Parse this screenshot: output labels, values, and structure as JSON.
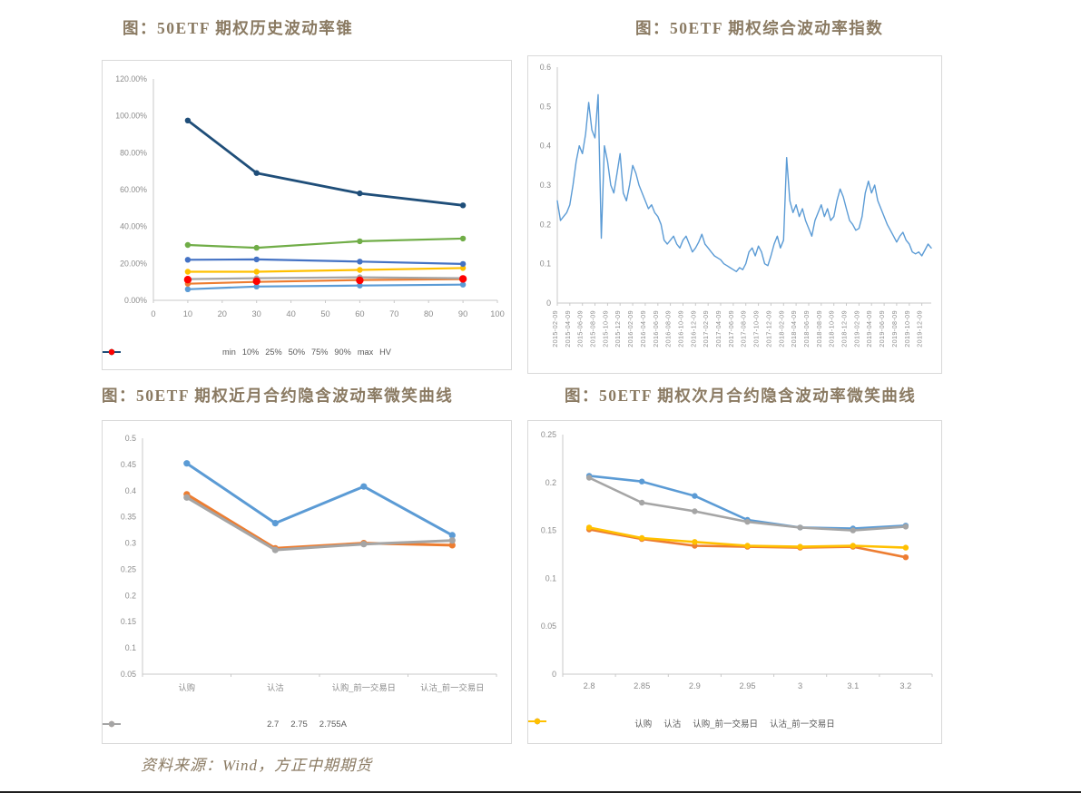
{
  "page": {
    "source_note": "资料来源：Wind，方正中期期货"
  },
  "chart_data": [
    {
      "id": "history-volatility-cone",
      "title": "图：50ETF 期权历史波动率锥",
      "type": "line",
      "x": [
        10,
        30,
        60,
        90
      ],
      "xlim": [
        0,
        100
      ],
      "x_ticks": [
        {
          "pos": 0,
          "label": "0"
        },
        {
          "pos": 10,
          "label": "10"
        },
        {
          "pos": 20,
          "label": "20"
        },
        {
          "pos": 30,
          "label": "30"
        },
        {
          "pos": 40,
          "label": "40"
        },
        {
          "pos": 50,
          "label": "50"
        },
        {
          "pos": 60,
          "label": "60"
        },
        {
          "pos": 70,
          "label": "70"
        },
        {
          "pos": 80,
          "label": "80"
        },
        {
          "pos": 90,
          "label": "90"
        },
        {
          "pos": 100,
          "label": "100"
        }
      ],
      "ylim": [
        0,
        1.2
      ],
      "y_ticks": [
        {
          "v": 0,
          "label": "0.00%"
        },
        {
          "v": 0.2,
          "label": "20.00%"
        },
        {
          "v": 0.4,
          "label": "40.00%"
        },
        {
          "v": 0.6,
          "label": "60.00%"
        },
        {
          "v": 0.8,
          "label": "80.00%"
        },
        {
          "v": 1.0,
          "label": "100.00%"
        },
        {
          "v": 1.2,
          "label": "120.00%"
        }
      ],
      "legend_position": "bottom",
      "series": [
        {
          "name": "min",
          "color": "#5B9BD5",
          "values": [
            0.06,
            0.075,
            0.08,
            0.085
          ]
        },
        {
          "name": "10%",
          "color": "#ED7D31",
          "values": [
            0.09,
            0.1,
            0.11,
            0.115
          ]
        },
        {
          "name": "25%",
          "color": "#A5A5A5",
          "values": [
            0.115,
            0.12,
            0.125,
            0.12
          ]
        },
        {
          "name": "50%",
          "color": "#FFC000",
          "values": [
            0.155,
            0.155,
            0.165,
            0.175
          ]
        },
        {
          "name": "75%",
          "color": "#4472C4",
          "values": [
            0.22,
            0.222,
            0.21,
            0.197
          ]
        },
        {
          "name": "90%",
          "color": "#70AD47",
          "values": [
            0.3,
            0.285,
            0.32,
            0.335
          ]
        },
        {
          "name": "max",
          "color": "#1F4E79",
          "values": [
            0.975,
            0.69,
            0.58,
            0.515
          ],
          "lw": 2.8
        },
        {
          "name": "HV",
          "color": "#FF0000",
          "values": [
            0.112,
            0.104,
            0.108,
            0.116
          ],
          "marker_only": true
        }
      ]
    },
    {
      "id": "composite-volatility-index",
      "title": "图：50ETF 期权综合波动率指数",
      "type": "line",
      "xlim": [
        0,
        119
      ],
      "rotate_x_labels": true,
      "x_ticks": [
        {
          "pos": 0,
          "label": "2015-02-09"
        },
        {
          "pos": 4,
          "label": "2015-04-09"
        },
        {
          "pos": 8,
          "label": "2015-06-09"
        },
        {
          "pos": 12,
          "label": "2015-08-09"
        },
        {
          "pos": 16,
          "label": "2015-10-09"
        },
        {
          "pos": 20,
          "label": "2015-12-09"
        },
        {
          "pos": 24,
          "label": "2016-02-09"
        },
        {
          "pos": 28,
          "label": "2016-04-09"
        },
        {
          "pos": 32,
          "label": "2016-06-09"
        },
        {
          "pos": 36,
          "label": "2016-08-09"
        },
        {
          "pos": 40,
          "label": "2016-10-09"
        },
        {
          "pos": 44,
          "label": "2016-12-09"
        },
        {
          "pos": 48,
          "label": "2017-02-09"
        },
        {
          "pos": 52,
          "label": "2017-04-09"
        },
        {
          "pos": 56,
          "label": "2017-06-09"
        },
        {
          "pos": 60,
          "label": "2017-08-09"
        },
        {
          "pos": 64,
          "label": "2017-10-09"
        },
        {
          "pos": 68,
          "label": "2017-12-09"
        },
        {
          "pos": 72,
          "label": "2018-02-09"
        },
        {
          "pos": 76,
          "label": "2018-04-09"
        },
        {
          "pos": 80,
          "label": "2018-06-09"
        },
        {
          "pos": 84,
          "label": "2018-08-09"
        },
        {
          "pos": 88,
          "label": "2018-10-09"
        },
        {
          "pos": 92,
          "label": "2018-12-09"
        },
        {
          "pos": 96,
          "label": "2019-02-09"
        },
        {
          "pos": 100,
          "label": "2019-04-09"
        },
        {
          "pos": 104,
          "label": "2019-06-09"
        },
        {
          "pos": 108,
          "label": "2019-08-09"
        },
        {
          "pos": 112,
          "label": "2019-10-09"
        },
        {
          "pos": 116,
          "label": "2019-12-09"
        }
      ],
      "ylim": [
        0,
        0.6
      ],
      "y_ticks": [
        {
          "v": 0,
          "label": "0"
        },
        {
          "v": 0.1,
          "label": "0.1"
        },
        {
          "v": 0.2,
          "label": "0.2"
        },
        {
          "v": 0.3,
          "label": "0.3"
        },
        {
          "v": 0.4,
          "label": "0.4"
        },
        {
          "v": 0.5,
          "label": "0.5"
        },
        {
          "v": 0.6,
          "label": "0.6"
        }
      ],
      "legend": false,
      "series": [
        {
          "name": "综合波动率指数",
          "color": "#5B9BD5",
          "values": [
            0.26,
            0.21,
            0.22,
            0.23,
            0.25,
            0.3,
            0.36,
            0.4,
            0.38,
            0.43,
            0.51,
            0.44,
            0.42,
            0.53,
            0.165,
            0.4,
            0.36,
            0.3,
            0.28,
            0.33,
            0.38,
            0.28,
            0.26,
            0.3,
            0.35,
            0.33,
            0.3,
            0.28,
            0.26,
            0.24,
            0.25,
            0.23,
            0.22,
            0.2,
            0.16,
            0.15,
            0.16,
            0.17,
            0.15,
            0.14,
            0.16,
            0.17,
            0.15,
            0.13,
            0.14,
            0.155,
            0.175,
            0.15,
            0.14,
            0.13,
            0.12,
            0.115,
            0.11,
            0.1,
            0.095,
            0.09,
            0.085,
            0.08,
            0.09,
            0.085,
            0.1,
            0.13,
            0.14,
            0.12,
            0.145,
            0.13,
            0.1,
            0.095,
            0.12,
            0.15,
            0.17,
            0.14,
            0.16,
            0.37,
            0.26,
            0.23,
            0.25,
            0.22,
            0.24,
            0.21,
            0.19,
            0.17,
            0.21,
            0.23,
            0.25,
            0.22,
            0.24,
            0.21,
            0.22,
            0.26,
            0.29,
            0.27,
            0.24,
            0.21,
            0.2,
            0.185,
            0.19,
            0.22,
            0.28,
            0.31,
            0.28,
            0.3,
            0.26,
            0.24,
            0.22,
            0.2,
            0.185,
            0.17,
            0.155,
            0.17,
            0.18,
            0.16,
            0.15,
            0.13,
            0.125,
            0.13,
            0.12,
            0.135,
            0.15,
            0.14
          ]
        }
      ]
    },
    {
      "id": "near-month-iv-smile",
      "title": "图：50ETF 期权近月合约隐含波动率微笑曲线",
      "type": "line",
      "categories": [
        "认购",
        "认沽",
        "认购_前一交易日",
        "认沽_前一交易日"
      ],
      "xlim": [
        0,
        4
      ],
      "ylim": [
        0.05,
        0.5
      ],
      "y_ticks": [
        {
          "v": 0.05,
          "label": "0.05"
        },
        {
          "v": 0.1,
          "label": "0.1"
        },
        {
          "v": 0.15,
          "label": "0.15"
        },
        {
          "v": 0.2,
          "label": "0.2"
        },
        {
          "v": 0.25,
          "label": "0.25"
        },
        {
          "v": 0.3,
          "label": "0.3"
        },
        {
          "v": 0.35,
          "label": "0.35"
        },
        {
          "v": 0.4,
          "label": "0.4"
        },
        {
          "v": 0.45,
          "label": "0.45"
        },
        {
          "v": 0.5,
          "label": "0.5"
        }
      ],
      "legend_position": "bottom",
      "series": [
        {
          "name": "2.7",
          "color": "#5B9BD5",
          "values": [
            0.452,
            0.338,
            0.408,
            0.315
          ]
        },
        {
          "name": "2.75",
          "color": "#ED7D31",
          "values": [
            0.393,
            0.29,
            0.3,
            0.296
          ]
        },
        {
          "name": "2.755A",
          "color": "#A5A5A5",
          "values": [
            0.387,
            0.287,
            0.298,
            0.305
          ]
        }
      ]
    },
    {
      "id": "next-month-iv-smile",
      "title": "图：50ETF 期权次月合约隐含波动率微笑曲线",
      "type": "line",
      "categories": [
        "2.8",
        "2.85",
        "2.9",
        "2.95",
        "3",
        "3.1",
        "3.2"
      ],
      "xlim": [
        0,
        7
      ],
      "ylim": [
        0,
        0.25
      ],
      "y_ticks": [
        {
          "v": 0,
          "label": "0"
        },
        {
          "v": 0.05,
          "label": "0.05"
        },
        {
          "v": 0.1,
          "label": "0.1"
        },
        {
          "v": 0.15,
          "label": "0.15"
        },
        {
          "v": 0.2,
          "label": "0.2"
        },
        {
          "v": 0.25,
          "label": "0.25"
        }
      ],
      "legend_position": "bottom",
      "series": [
        {
          "name": "认购",
          "color": "#5B9BD5",
          "values": [
            0.207,
            0.201,
            0.186,
            0.161,
            0.153,
            0.152,
            0.155
          ]
        },
        {
          "name": "认沽",
          "color": "#ED7D31",
          "values": [
            0.151,
            0.141,
            0.134,
            0.133,
            0.132,
            0.133,
            0.122
          ]
        },
        {
          "name": "认购_前一交易日",
          "color": "#A5A5A5",
          "values": [
            0.205,
            0.179,
            0.17,
            0.159,
            0.153,
            0.15,
            0.154
          ]
        },
        {
          "name": "认沽_前一交易日",
          "color": "#FFC000",
          "values": [
            0.153,
            0.142,
            0.138,
            0.134,
            0.133,
            0.134,
            0.132
          ]
        }
      ]
    }
  ]
}
